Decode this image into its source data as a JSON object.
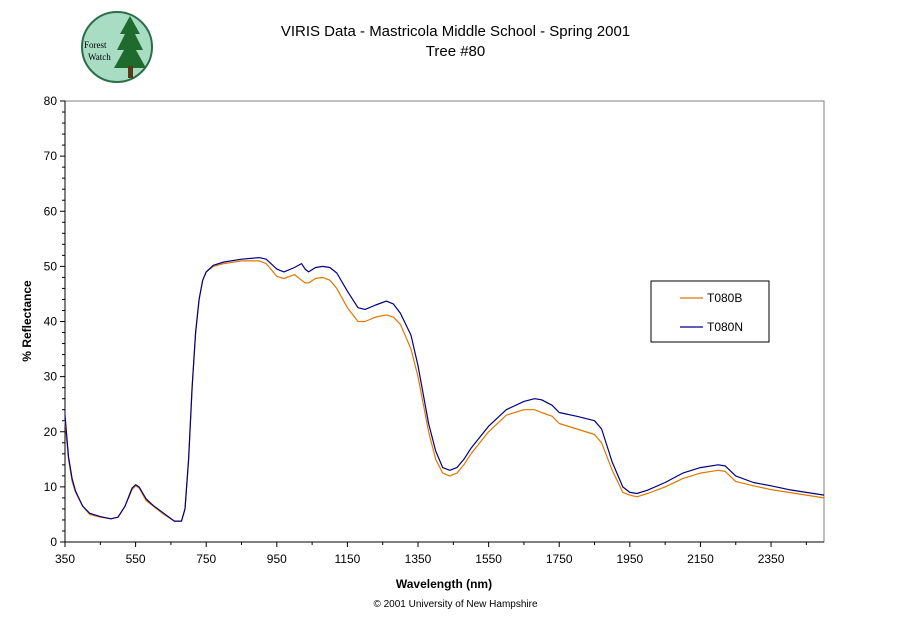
{
  "logo": {
    "text_line1": "Forest",
    "text_line2": "Watch"
  },
  "footer": {
    "copyright": "© 2001 University of New Hampshire"
  },
  "chart_data": {
    "type": "line",
    "title": "VIRIS Data - Mastricola Middle School - Spring 2001",
    "subtitle": "Tree #80",
    "xlabel": "Wavelength (nm)",
    "ylabel": "% Reflectance",
    "xlim": [
      350,
      2500
    ],
    "ylim": [
      0,
      80
    ],
    "x_ticks": [
      350,
      550,
      750,
      950,
      1150,
      1350,
      1550,
      1750,
      1950,
      2150,
      2350
    ],
    "y_ticks": [
      0,
      10,
      20,
      30,
      40,
      50,
      60,
      70,
      80
    ],
    "grid": false,
    "legend_position": "right",
    "series": [
      {
        "name": "T080B",
        "color": "#e07800",
        "x": [
          350,
          360,
          370,
          380,
          400,
          420,
          450,
          480,
          500,
          520,
          540,
          550,
          560,
          580,
          600,
          630,
          660,
          680,
          690,
          700,
          710,
          720,
          730,
          740,
          750,
          770,
          800,
          850,
          900,
          920,
          950,
          970,
          1000,
          1020,
          1030,
          1040,
          1060,
          1080,
          1100,
          1120,
          1150,
          1180,
          1200,
          1230,
          1260,
          1280,
          1300,
          1330,
          1350,
          1380,
          1400,
          1420,
          1440,
          1460,
          1480,
          1500,
          1550,
          1600,
          1650,
          1680,
          1700,
          1730,
          1750,
          1800,
          1850,
          1870,
          1900,
          1930,
          1950,
          1970,
          2000,
          2050,
          2100,
          2150,
          2200,
          2220,
          2250,
          2300,
          2350,
          2400,
          2450,
          2500
        ],
        "y": [
          22,
          15,
          11,
          9,
          6.5,
          5,
          4.5,
          4.2,
          4.5,
          6.5,
          9.5,
          10.2,
          9.8,
          7.5,
          6.5,
          5,
          3.8,
          3.8,
          6,
          15,
          28,
          38,
          44,
          47.5,
          49,
          50,
          50.5,
          51,
          51,
          50.5,
          48.2,
          47.8,
          48.5,
          47.5,
          47,
          47,
          47.8,
          48,
          47.5,
          46,
          42.5,
          40,
          40,
          40.8,
          41.2,
          40.8,
          39.5,
          35,
          30,
          20,
          15,
          12.5,
          12,
          12.5,
          14,
          16,
          20,
          23,
          24,
          24,
          23.5,
          22.8,
          21.5,
          20.5,
          19.5,
          18,
          13,
          9,
          8.5,
          8.2,
          8.8,
          10,
          11.5,
          12.5,
          13,
          12.8,
          11,
          10.2,
          9.5,
          9,
          8.5,
          8
        ]
      },
      {
        "name": "T080N",
        "color": "#000080",
        "x": [
          350,
          360,
          370,
          380,
          400,
          420,
          450,
          480,
          500,
          520,
          540,
          550,
          560,
          580,
          600,
          630,
          660,
          680,
          690,
          700,
          710,
          720,
          730,
          740,
          750,
          770,
          800,
          850,
          900,
          920,
          950,
          970,
          1000,
          1020,
          1030,
          1040,
          1060,
          1080,
          1100,
          1120,
          1150,
          1180,
          1200,
          1230,
          1260,
          1280,
          1300,
          1330,
          1350,
          1380,
          1400,
          1420,
          1440,
          1460,
          1480,
          1500,
          1550,
          1600,
          1650,
          1680,
          1700,
          1730,
          1750,
          1800,
          1850,
          1870,
          1900,
          1930,
          1950,
          1970,
          2000,
          2050,
          2100,
          2150,
          2200,
          2220,
          2250,
          2300,
          2350,
          2400,
          2450,
          2500
        ],
        "y": [
          23,
          15.5,
          11.5,
          9.2,
          6.5,
          5.2,
          4.6,
          4.2,
          4.5,
          6.5,
          9.8,
          10.4,
          10,
          7.8,
          6.6,
          5.2,
          3.8,
          3.8,
          6,
          15,
          28,
          38,
          44,
          47.5,
          49,
          50.2,
          50.8,
          51.3,
          51.6,
          51.3,
          49.5,
          49,
          49.8,
          50.5,
          49.5,
          49,
          49.8,
          50,
          49.8,
          48.8,
          45.5,
          42.5,
          42.2,
          43,
          43.7,
          43.2,
          41.5,
          37.5,
          32,
          21.5,
          16.5,
          13.5,
          13,
          13.5,
          15,
          17,
          21,
          24,
          25.5,
          26,
          25.8,
          24.8,
          23.5,
          22.8,
          22,
          20.5,
          14.5,
          10,
          9,
          8.8,
          9.4,
          10.8,
          12.5,
          13.5,
          14,
          13.8,
          12,
          10.8,
          10.2,
          9.5,
          9,
          8.5
        ]
      }
    ]
  }
}
